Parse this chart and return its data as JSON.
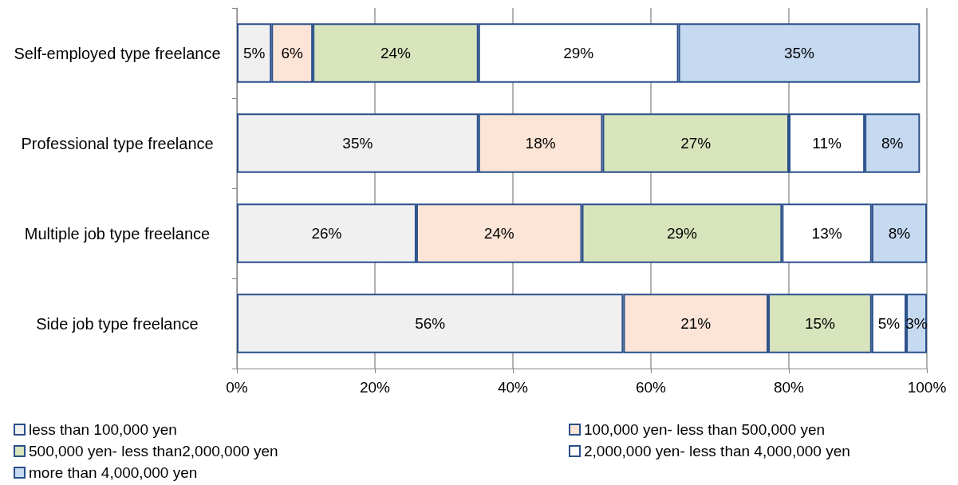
{
  "chart_data": {
    "type": "bar",
    "orientation": "horizontal",
    "stacked": true,
    "categories": [
      "Self-employed type freelance",
      "Professional type freelance",
      "Multiple job type freelance",
      "Side job type freelance"
    ],
    "series": [
      {
        "name": "less than 100,000 yen",
        "color": "#f0f0f0",
        "values": [
          5,
          35,
          26,
          56
        ],
        "value_labels": [
          "5%",
          "35%",
          "26%",
          "56%"
        ]
      },
      {
        "name": "100,000 yen- less than 500,000 yen",
        "color": "#fce4d6",
        "values": [
          6,
          18,
          24,
          21
        ],
        "value_labels": [
          "6%",
          "18%",
          "24%",
          "21%"
        ]
      },
      {
        "name": "500,000 yen- less than2,000,000 yen",
        "color": "#d8e4bc",
        "values": [
          24,
          27,
          29,
          15
        ],
        "value_labels": [
          "24%",
          "27%",
          "29%",
          "15%"
        ]
      },
      {
        "name": "2,000,000 yen- less than 4,000,000 yen",
        "color": "#ffffff",
        "values": [
          29,
          11,
          13,
          5
        ],
        "value_labels": [
          "29%",
          "11%",
          "13%",
          "5%"
        ]
      },
      {
        "name": "more than 4,000,000 yen",
        "color": "#c5d9f1",
        "values": [
          35,
          8,
          8,
          3
        ],
        "value_labels": [
          "35%",
          "8%",
          "8%",
          "3%"
        ]
      }
    ],
    "xlim": [
      0,
      100
    ],
    "xticks": [
      {
        "value": 0,
        "label": "0%"
      },
      {
        "value": 20,
        "label": "20%"
      },
      {
        "value": 40,
        "label": "40%"
      },
      {
        "value": 60,
        "label": "60%"
      },
      {
        "value": 80,
        "label": "80%"
      },
      {
        "value": 100,
        "label": "100%"
      }
    ],
    "grid": "x",
    "legend": "bottom"
  }
}
